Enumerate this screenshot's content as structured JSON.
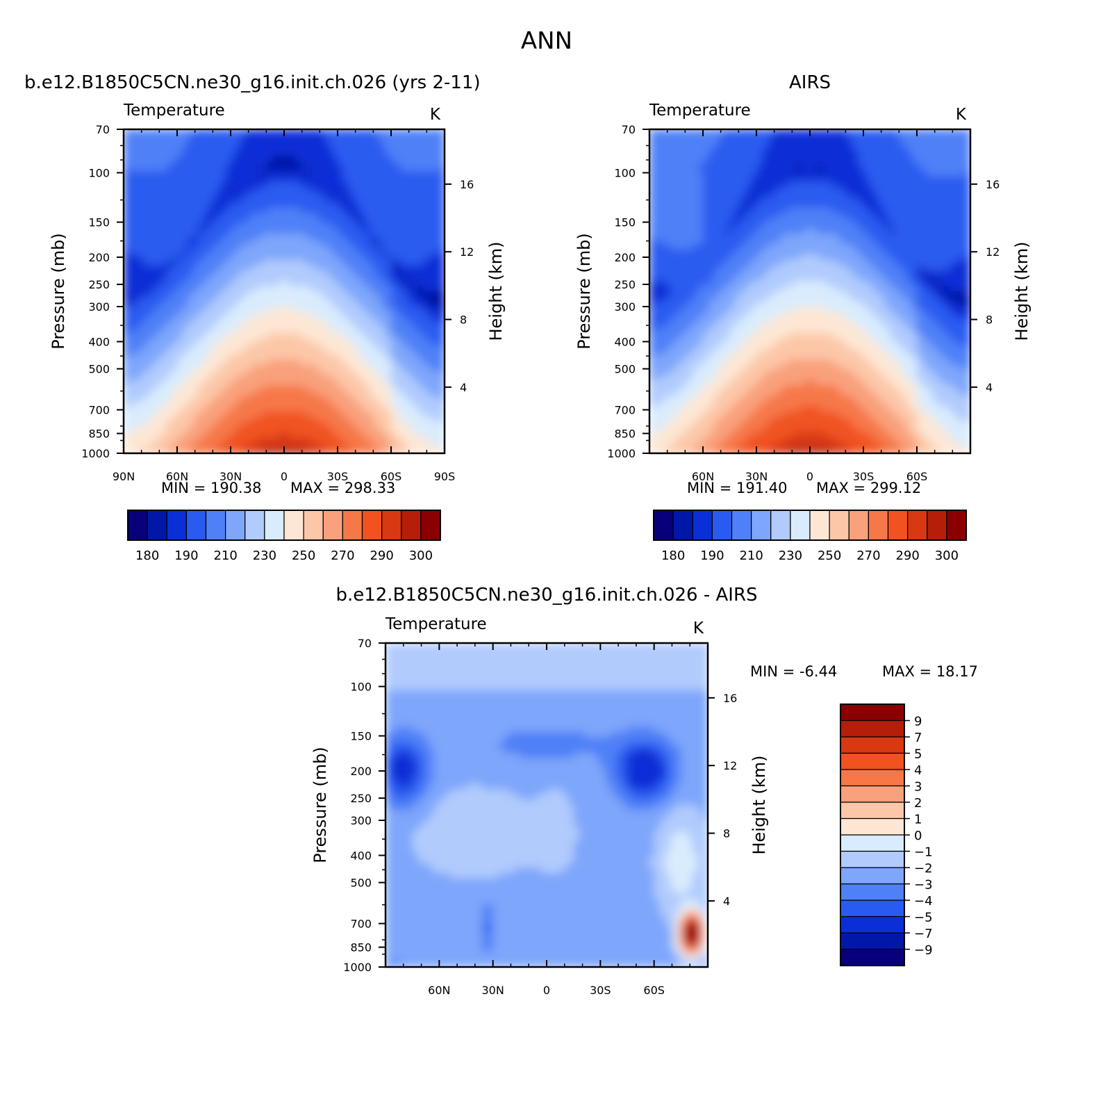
{
  "figure": {
    "title": "ANN",
    "panel_var": "Temperature",
    "panel_units": "K",
    "ylabel": "Pressure (mb)",
    "ylabel_right": "Height (km)"
  },
  "palette": {
    "abs": [
      "#08007a",
      "#0018a8",
      "#0a2fd6",
      "#2a5bf0",
      "#4f80f7",
      "#7ea6fb",
      "#b1cbfd",
      "#d9ecfd",
      "#fde7d4",
      "#fcc7a8",
      "#f9a07c",
      "#f67848",
      "#f15220",
      "#d83812",
      "#b51e08",
      "#8a0000"
    ],
    "diff": [
      "#8a0000",
      "#b51e08",
      "#d83812",
      "#f15220",
      "#f67848",
      "#f9a07c",
      "#fcc7a8",
      "#fde7d4",
      "#d9ecfd",
      "#b1cbfd",
      "#7ea6fb",
      "#4f80f7",
      "#2a5bf0",
      "#0a2fd6",
      "#0018a8",
      "#08007a"
    ]
  },
  "chart_data": [
    {
      "type": "heatmap",
      "panel": "model",
      "title": "b.e12.B1850C5CN.ne30_g16.init.ch.026 (yrs 2-11)",
      "variable": "Temperature",
      "units": "K",
      "xlabel": "",
      "ylabel": "Pressure (mb)",
      "ylabel_right": "Height (km)",
      "x_ticks": [
        "90N",
        "60N",
        "30N",
        "0",
        "30S",
        "60S",
        "90S"
      ],
      "x_tick_values": [
        90,
        60,
        30,
        0,
        -30,
        -60,
        -90
      ],
      "y_ticks": [
        70,
        100,
        150,
        200,
        250,
        300,
        400,
        500,
        700,
        850,
        1000
      ],
      "height_ticks_km": [
        4,
        8,
        12,
        16
      ],
      "xlim": [
        90,
        -90
      ],
      "ylim_mb": [
        1000,
        70
      ],
      "min_label": "MIN = 190.38",
      "max_label": "MAX = 298.33",
      "min": 190.38,
      "max": 298.33,
      "contour_levels": [
        180,
        185,
        190,
        200,
        210,
        220,
        230,
        240,
        250,
        260,
        270,
        280,
        290,
        295,
        300
      ],
      "colorbar_labels": [
        "180",
        "190",
        "210",
        "230",
        "250",
        "270",
        "290",
        "300"
      ]
    },
    {
      "type": "heatmap",
      "panel": "obs",
      "title": "AIRS",
      "variable": "Temperature",
      "units": "K",
      "xlabel": "",
      "ylabel": "Pressure (mb)",
      "ylabel_right": "Height (km)",
      "x_ticks": [
        "60N",
        "30N",
        "0",
        "30S",
        "60S"
      ],
      "x_tick_values": [
        60,
        30,
        0,
        -30,
        -60
      ],
      "y_ticks": [
        70,
        100,
        150,
        200,
        250,
        300,
        400,
        500,
        700,
        850,
        1000
      ],
      "height_ticks_km": [
        4,
        8,
        12,
        16
      ],
      "xlim": [
        90,
        -90
      ],
      "ylim_mb": [
        1000,
        70
      ],
      "min_label": "MIN = 191.40",
      "max_label": "MAX = 299.12",
      "min": 191.4,
      "max": 299.12,
      "contour_levels": [
        180,
        185,
        190,
        200,
        210,
        220,
        230,
        240,
        250,
        260,
        270,
        280,
        290,
        295,
        300
      ],
      "colorbar_labels": [
        "180",
        "190",
        "210",
        "230",
        "250",
        "270",
        "290",
        "300"
      ]
    },
    {
      "type": "heatmap",
      "panel": "difference",
      "title": "b.e12.B1850C5CN.ne30_g16.init.ch.026 - AIRS",
      "variable": "Temperature",
      "units": "K",
      "xlabel": "",
      "ylabel": "Pressure (mb)",
      "ylabel_right": "Height (km)",
      "x_ticks": [
        "60N",
        "30N",
        "0",
        "30S",
        "60S"
      ],
      "x_tick_values": [
        60,
        30,
        0,
        -30,
        -60
      ],
      "y_ticks": [
        70,
        100,
        150,
        200,
        250,
        300,
        400,
        500,
        700,
        850,
        1000
      ],
      "height_ticks_km": [
        4,
        8,
        12,
        16
      ],
      "xlim": [
        90,
        -90
      ],
      "ylim_mb": [
        1000,
        70
      ],
      "min_label": "MIN = -6.44",
      "max_label": "MAX = 18.17",
      "min": -6.44,
      "max": 18.17,
      "contour_levels": [
        9,
        7,
        5,
        4,
        3,
        2,
        1,
        0,
        -1,
        -2,
        -3,
        -4,
        -5,
        -7,
        -9
      ],
      "colorbar_labels": [
        "9",
        "7",
        "5",
        "4",
        "3",
        "2",
        "1",
        "0",
        "−1",
        "−2",
        "−3",
        "−4",
        "−5",
        "−7",
        "−9"
      ]
    }
  ]
}
